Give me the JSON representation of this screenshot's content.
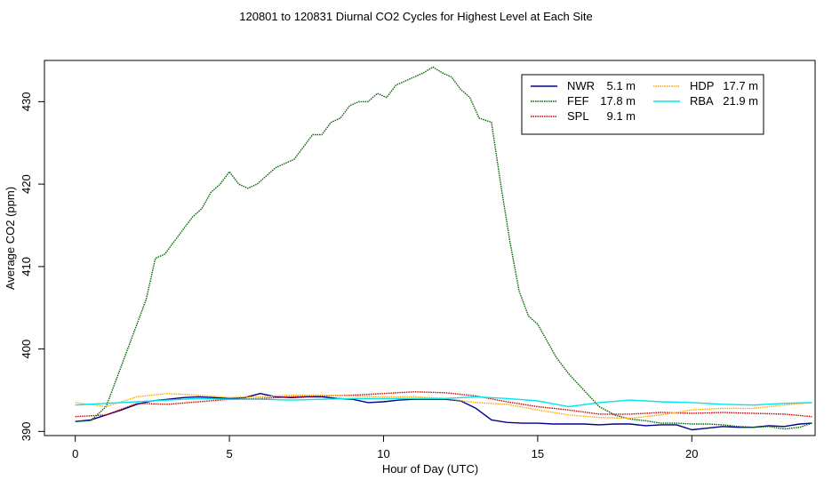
{
  "chart_data": {
    "type": "line",
    "title": "120801  to  120831 Diurnal CO2 Cycles for Highest Level at Each Site",
    "xlabel": "Hour of Day (UTC)",
    "ylabel": "Average CO2 (ppm)",
    "xlim": [
      -1,
      24
    ],
    "ylim": [
      389.5,
      435
    ],
    "x_ticks": [
      0,
      5,
      10,
      15,
      20
    ],
    "y_ticks": [
      390,
      400,
      410,
      420,
      430
    ],
    "legend_position": "top-right",
    "series": [
      {
        "name": "NWR",
        "height": "5.1 m",
        "color": "#00008b",
        "style": "solid",
        "x": [
          0,
          0.5,
          1,
          1.5,
          2,
          2.5,
          3,
          3.5,
          4,
          4.5,
          5,
          5.5,
          6,
          6.5,
          7,
          7.5,
          8,
          8.5,
          9,
          9.5,
          10,
          10.5,
          11,
          11.5,
          12,
          12.5,
          13,
          13.5,
          14,
          14.5,
          15,
          15.5,
          16,
          16.5,
          17,
          17.5,
          18,
          18.5,
          19,
          19.5,
          20,
          20.5,
          21,
          21.5,
          22,
          22.5,
          23,
          23.5,
          23.9
        ],
        "values": [
          391.2,
          391.4,
          392.0,
          392.6,
          393.3,
          393.7,
          393.9,
          394.1,
          394.2,
          394.1,
          394.0,
          394.1,
          394.6,
          394.2,
          394.1,
          394.2,
          394.2,
          394.0,
          393.9,
          393.5,
          393.6,
          393.8,
          393.9,
          393.9,
          393.9,
          393.7,
          392.8,
          391.4,
          391.1,
          391.0,
          391.0,
          390.9,
          390.9,
          390.9,
          390.8,
          390.9,
          390.9,
          390.7,
          390.8,
          390.8,
          390.2,
          390.4,
          390.6,
          390.5,
          390.5,
          390.7,
          390.6,
          390.9,
          391.0
        ]
      },
      {
        "name": "FEF",
        "height": "17.8 m",
        "color": "#006400",
        "style": "dotted",
        "x": [
          0,
          0.5,
          1,
          1.5,
          2,
          2.3,
          2.6,
          2.9,
          3.2,
          3.5,
          3.8,
          4.1,
          4.4,
          4.7,
          5.0,
          5.3,
          5.6,
          5.9,
          6.2,
          6.5,
          6.8,
          7.1,
          7.4,
          7.7,
          8.0,
          8.3,
          8.6,
          8.9,
          9.2,
          9.5,
          9.8,
          10.1,
          10.4,
          10.7,
          11.0,
          11.3,
          11.6,
          11.9,
          12.2,
          12.5,
          12.8,
          13.1,
          13.5,
          13.8,
          14.1,
          14.4,
          14.7,
          15.0,
          15.3,
          15.6,
          16.0,
          16.5,
          17.0,
          17.5,
          18.0,
          18.5,
          19.0,
          19.5,
          20.0,
          20.5,
          21.0,
          21.5,
          22.0,
          22.5,
          23.0,
          23.5,
          23.9
        ],
        "values": [
          391.2,
          391.3,
          393.0,
          398.0,
          403.0,
          406.0,
          411.0,
          411.5,
          413.0,
          414.5,
          416.0,
          417.0,
          419.0,
          420.0,
          421.5,
          420.0,
          419.5,
          420.0,
          421.0,
          422.0,
          422.5,
          423.0,
          424.5,
          426.0,
          426.0,
          427.5,
          428.0,
          429.5,
          430.0,
          430.0,
          431.0,
          430.5,
          432.0,
          432.5,
          433.0,
          433.5,
          434.2,
          433.5,
          433.0,
          431.5,
          430.5,
          428.0,
          427.5,
          420.0,
          413.0,
          407.0,
          404.0,
          403.0,
          401.0,
          399.0,
          397.0,
          395.0,
          393.0,
          392.0,
          391.5,
          391.3,
          391.0,
          391.0,
          390.9,
          390.9,
          390.8,
          390.6,
          390.5,
          390.6,
          390.3,
          390.5,
          391.0
        ]
      },
      {
        "name": "SPL",
        "height": "9.1 m",
        "color": "#cc0000",
        "style": "dotted",
        "x": [
          0,
          1,
          2,
          3,
          4,
          5,
          6,
          7,
          8,
          9,
          10,
          11,
          12,
          13,
          14,
          15,
          16,
          17,
          18,
          19,
          20,
          21,
          22,
          23,
          23.9
        ],
        "values": [
          391.8,
          392.0,
          393.4,
          393.3,
          393.6,
          393.9,
          394.0,
          394.2,
          394.3,
          394.4,
          394.6,
          394.8,
          394.7,
          394.3,
          393.6,
          393.0,
          392.6,
          392.1,
          392.1,
          392.3,
          392.2,
          392.3,
          392.2,
          392.1,
          391.8
        ]
      },
      {
        "name": "HDP",
        "height": "17.7 m",
        "color": "#ffa500",
        "style": "dotted",
        "x": [
          0,
          1,
          2,
          3,
          4,
          5,
          6,
          7,
          8,
          9,
          10,
          11,
          12,
          13,
          14,
          15,
          16,
          17,
          18,
          19,
          20,
          21,
          22,
          23,
          23.9
        ],
        "values": [
          393.5,
          393.0,
          394.2,
          394.6,
          394.4,
          394.1,
          394.2,
          394.4,
          394.4,
          394.3,
          394.2,
          394.2,
          394.0,
          393.5,
          393.3,
          392.6,
          392.0,
          391.7,
          391.6,
          392.0,
          392.6,
          392.8,
          392.8,
          393.2,
          393.5
        ]
      },
      {
        "name": "RBA",
        "height": "21.9 m",
        "color": "#00e5ee",
        "style": "solid",
        "x": [
          0,
          1,
          2,
          3,
          4,
          5,
          6,
          7,
          8,
          9,
          10,
          11,
          12,
          13,
          14,
          15,
          16,
          17,
          18,
          19,
          20,
          21,
          22,
          23,
          23.9
        ],
        "values": [
          393.2,
          393.4,
          393.6,
          393.8,
          394.0,
          393.9,
          393.9,
          393.8,
          393.9,
          394.0,
          394.0,
          394.0,
          394.0,
          394.2,
          394.0,
          393.7,
          393.0,
          393.5,
          393.8,
          393.6,
          393.5,
          393.3,
          393.2,
          393.4,
          393.5
        ]
      }
    ]
  }
}
